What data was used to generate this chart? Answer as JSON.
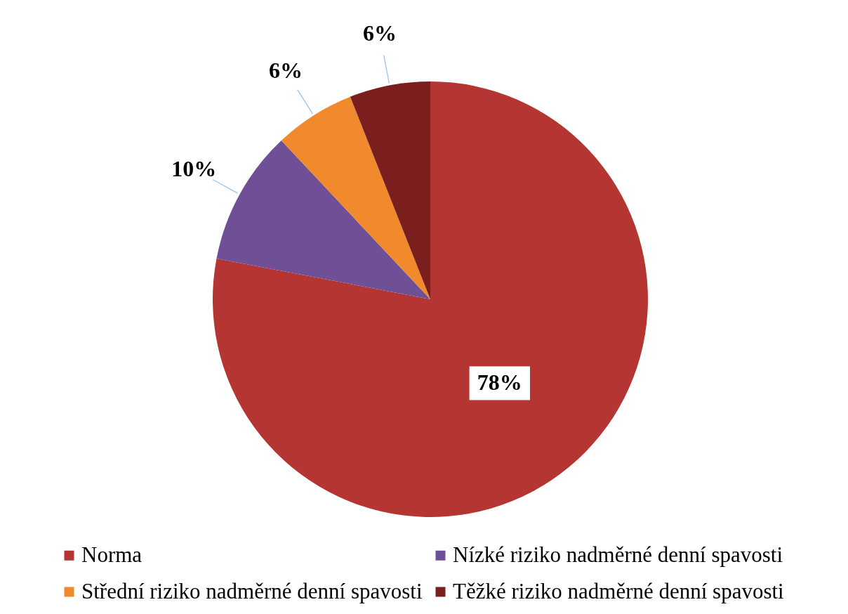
{
  "chart_data": {
    "type": "pie",
    "categories": [
      "Norma",
      "Nízké riziko nadměrné denní spavosti",
      "Střední riziko nadměrné denní spavosti",
      "Těžké riziko nadměrné denní spavosti"
    ],
    "values": [
      78,
      10,
      6,
      6
    ],
    "colors": [
      "#b43532",
      "#6f4f96",
      "#f08a2c",
      "#7b1e1e"
    ],
    "value_labels": [
      "78%",
      "10%",
      "6%",
      "6%"
    ],
    "legend": "bottom"
  }
}
